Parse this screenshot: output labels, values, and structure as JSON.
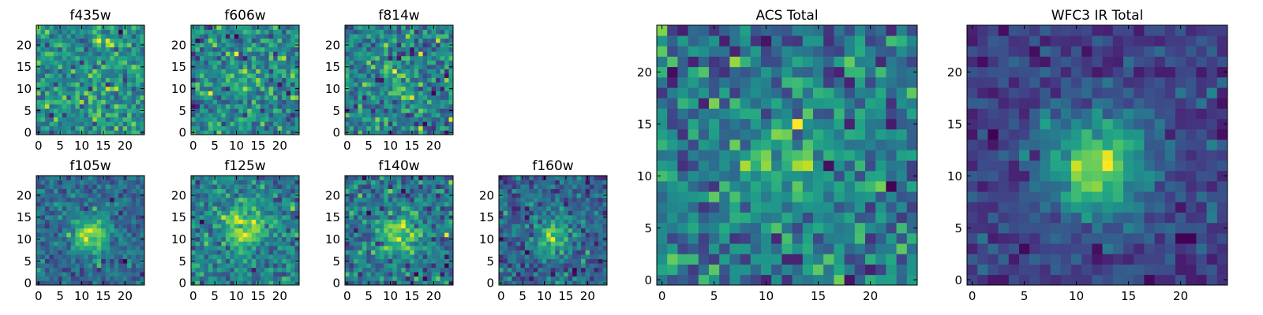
{
  "chart_data": [
    {
      "type": "heatmap",
      "title": "f435w",
      "grid_size": 25,
      "colormap": "viridis",
      "xticks": [
        0,
        5,
        10,
        15,
        20
      ],
      "yticks": [
        0,
        5,
        10,
        15,
        20
      ],
      "xlim": [
        -0.5,
        24.5
      ],
      "ylim": [
        -0.5,
        24.5
      ],
      "source_center": null,
      "source_strength": 0.0,
      "source_radius": 0,
      "noise_level": 1.0,
      "seed": 11
    },
    {
      "type": "heatmap",
      "title": "f606w",
      "grid_size": 25,
      "colormap": "viridis",
      "xticks": [
        0,
        5,
        10,
        15,
        20
      ],
      "yticks": [
        0,
        5,
        10,
        15,
        20
      ],
      "xlim": [
        -0.5,
        24.5
      ],
      "ylim": [
        -0.5,
        24.5
      ],
      "source_center": [
        12,
        12
      ],
      "source_strength": 0.25,
      "source_radius": 2.5,
      "noise_level": 1.0,
      "seed": 23
    },
    {
      "type": "heatmap",
      "title": "f814w",
      "grid_size": 25,
      "colormap": "viridis",
      "xticks": [
        0,
        5,
        10,
        15,
        20
      ],
      "yticks": [
        0,
        5,
        10,
        15,
        20
      ],
      "xlim": [
        -0.5,
        24.5
      ],
      "ylim": [
        -0.5,
        24.5
      ],
      "source_center": [
        12,
        11
      ],
      "source_strength": 0.45,
      "source_radius": 2.5,
      "noise_level": 1.0,
      "seed": 37
    },
    {
      "type": "heatmap",
      "title": "f105w",
      "grid_size": 25,
      "colormap": "viridis",
      "xticks": [
        0,
        5,
        10,
        15,
        20
      ],
      "yticks": [
        0,
        5,
        10,
        15,
        20
      ],
      "xlim": [
        -0.5,
        24.5
      ],
      "ylim": [
        -0.5,
        24.5
      ],
      "source_center": [
        12,
        11
      ],
      "source_strength": 1.3,
      "source_radius": 3.2,
      "noise_level": 0.6,
      "seed": 41
    },
    {
      "type": "heatmap",
      "title": "f125w",
      "grid_size": 25,
      "colormap": "viridis",
      "xticks": [
        0,
        5,
        10,
        15,
        20
      ],
      "yticks": [
        0,
        5,
        10,
        15,
        20
      ],
      "xlim": [
        -0.5,
        24.5
      ],
      "ylim": [
        -0.5,
        24.5
      ],
      "source_center": [
        12,
        12
      ],
      "source_strength": 1.1,
      "source_radius": 3.4,
      "noise_level": 0.7,
      "seed": 53
    },
    {
      "type": "heatmap",
      "title": "f140w",
      "grid_size": 25,
      "colormap": "viridis",
      "xticks": [
        0,
        5,
        10,
        15,
        20
      ],
      "yticks": [
        0,
        5,
        10,
        15,
        20
      ],
      "xlim": [
        -0.5,
        24.5
      ],
      "ylim": [
        -0.5,
        24.5
      ],
      "source_center": [
        12,
        11
      ],
      "source_strength": 1.0,
      "source_radius": 3.4,
      "noise_level": 0.75,
      "seed": 67
    },
    {
      "type": "heatmap",
      "title": "f160w",
      "grid_size": 25,
      "colormap": "viridis",
      "xticks": [
        0,
        5,
        10,
        15,
        20
      ],
      "yticks": [
        0,
        5,
        10,
        15,
        20
      ],
      "xlim": [
        -0.5,
        24.5
      ],
      "ylim": [
        -0.5,
        24.5
      ],
      "source_center": [
        12,
        11
      ],
      "source_strength": 1.2,
      "source_radius": 3.0,
      "noise_level": 0.75,
      "seed": 79
    },
    {
      "type": "heatmap",
      "title": "ACS Total",
      "grid_size": 25,
      "colormap": "viridis",
      "xticks": [
        0,
        5,
        10,
        15,
        20
      ],
      "yticks": [
        0,
        5,
        10,
        15,
        20
      ],
      "xlim": [
        -0.5,
        24.5
      ],
      "ylim": [
        -0.5,
        24.5
      ],
      "source_center": [
        12,
        11
      ],
      "source_strength": 0.55,
      "source_radius": 3.5,
      "noise_level": 0.9,
      "seed": 83
    },
    {
      "type": "heatmap",
      "title": "WFC3 IR Total",
      "grid_size": 25,
      "colormap": "viridis",
      "xticks": [
        0,
        5,
        10,
        15,
        20
      ],
      "yticks": [
        0,
        5,
        10,
        15,
        20
      ],
      "xlim": [
        -0.5,
        24.5
      ],
      "ylim": [
        -0.5,
        24.5
      ],
      "source_center": [
        12,
        11
      ],
      "source_strength": 1.6,
      "source_radius": 3.4,
      "noise_level": 0.45,
      "seed": 97
    }
  ]
}
